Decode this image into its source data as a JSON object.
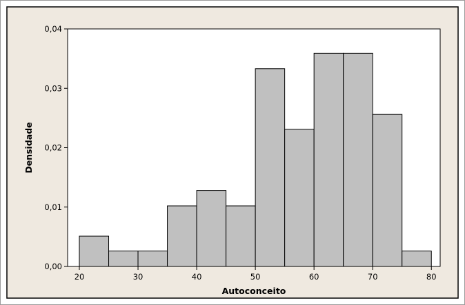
{
  "chart_data": {
    "type": "bar",
    "subtype": "histogram",
    "title": "",
    "xlabel": "Autoconceito",
    "ylabel": "Densidade",
    "bin_edges": [
      20,
      25,
      30,
      35,
      40,
      45,
      50,
      55,
      60,
      65,
      70,
      75,
      80
    ],
    "values": [
      0.0051,
      0.0026,
      0.0026,
      0.0102,
      0.0128,
      0.0102,
      0.0333,
      0.0231,
      0.0359,
      0.0359,
      0.0256,
      0.0026
    ],
    "xlim": [
      18,
      81.5
    ],
    "ylim": [
      0,
      0.04
    ],
    "xticks": [
      20,
      30,
      40,
      50,
      60,
      70,
      80
    ],
    "xtick_labels": [
      "20",
      "30",
      "40",
      "50",
      "60",
      "70",
      "80"
    ],
    "yticks": [
      0,
      0.01,
      0.02,
      0.03,
      0.04
    ],
    "ytick_labels": [
      "0,00",
      "0,01",
      "0,02",
      "0,03",
      "0,04"
    ],
    "grid": false,
    "colors": {
      "bar_fill": "#c0c0c0",
      "bar_edge": "#000000",
      "figure_bg": "#efe9e0",
      "plot_bg": "#ffffff",
      "frame": "#000000"
    }
  }
}
